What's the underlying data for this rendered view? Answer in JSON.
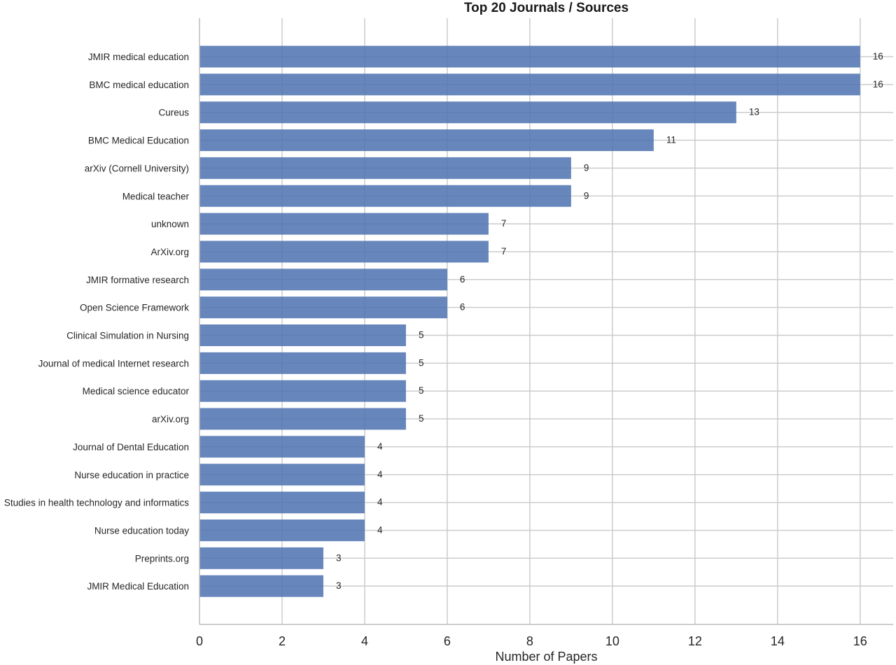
{
  "chart_data": {
    "type": "bar",
    "orientation": "horizontal",
    "title": "Top 20 Journals / Sources",
    "xlabel": "Number of Papers",
    "ylabel": "",
    "xlim": [
      0,
      16.8
    ],
    "x_ticks": [
      0,
      2,
      4,
      6,
      8,
      10,
      12,
      14,
      16
    ],
    "grid": true,
    "bar_color": "#4c72b0",
    "categories": [
      "JMIR medical education",
      "BMC medical education",
      "Cureus",
      "BMC Medical Education",
      "arXiv (Cornell University)",
      "Medical teacher",
      "unknown",
      "ArXiv.org",
      "JMIR formative research",
      "Open Science Framework",
      "Clinical Simulation in Nursing",
      "Journal of medical Internet research",
      "Medical science educator",
      "arXiv.org",
      "Journal of Dental Education",
      "Nurse education in practice",
      "Studies in health technology and informatics",
      "Nurse education today",
      "Preprints.org",
      "JMIR Medical Education"
    ],
    "values": [
      16,
      16,
      13,
      11,
      9,
      9,
      7,
      7,
      6,
      6,
      5,
      5,
      5,
      5,
      4,
      4,
      4,
      4,
      3,
      3
    ],
    "data_labels": [
      "16",
      "16",
      "13",
      "11",
      "9",
      "9",
      "7",
      "7",
      "6",
      "6",
      "5",
      "5",
      "5",
      "5",
      "4",
      "4",
      "4",
      "4",
      "3",
      "3"
    ]
  }
}
